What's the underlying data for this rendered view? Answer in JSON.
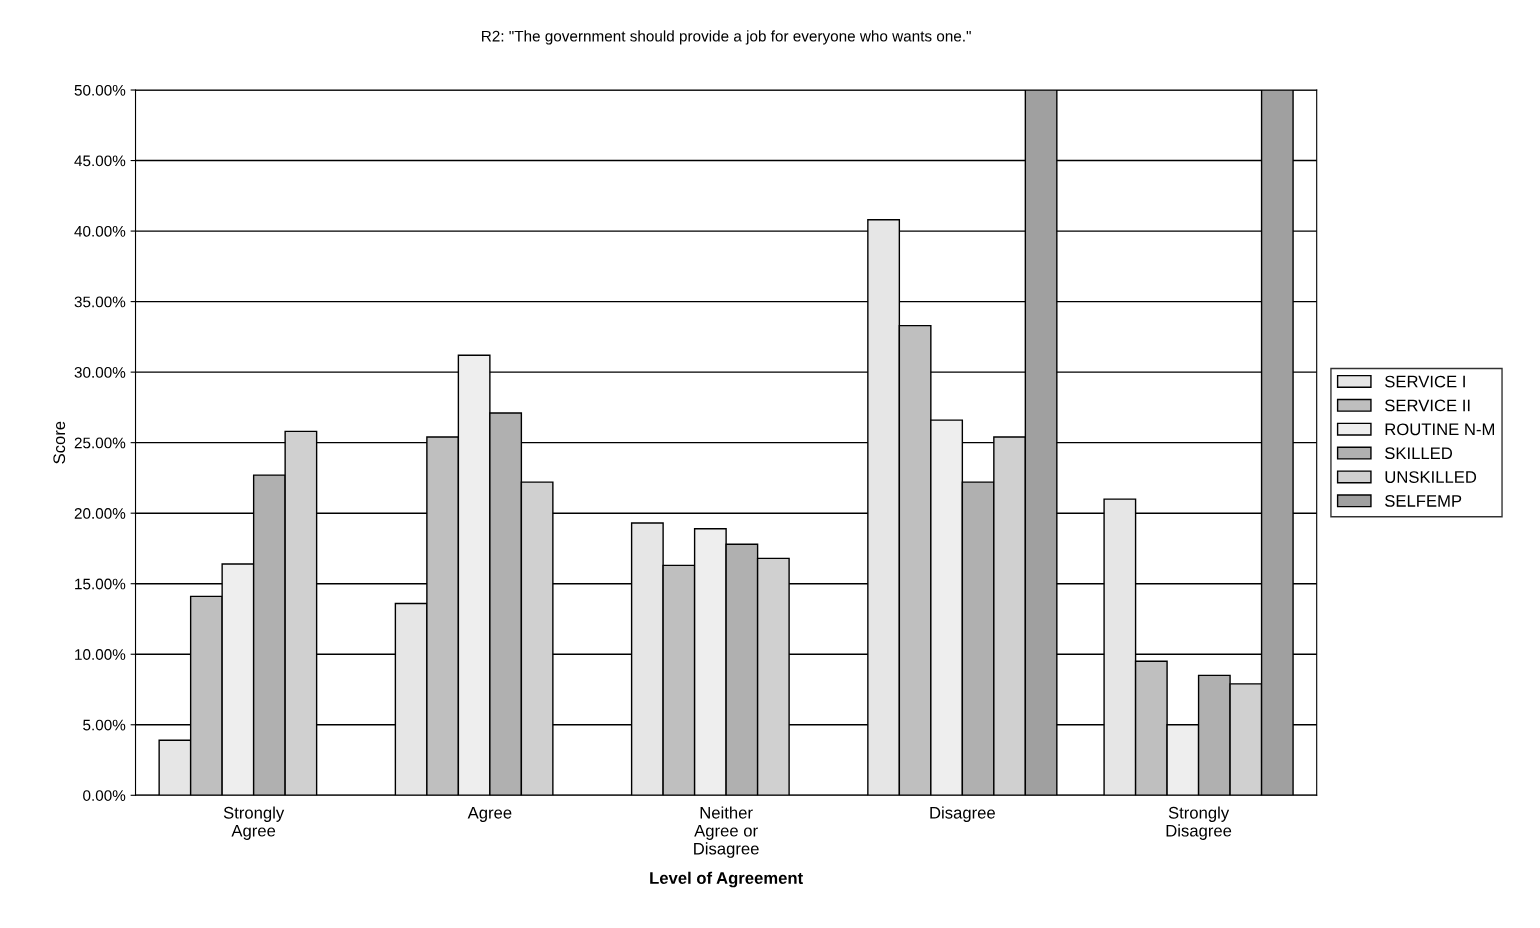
{
  "chart_data": {
    "type": "bar",
    "title": "R2: \"The government should provide a job for everyone who wants one.\"",
    "xlabel": "Level of Agreement",
    "ylabel": "Score",
    "categories": [
      "Strongly\nAgree",
      "Agree",
      "Neither\nAgree or\nDisagree",
      "Disagree",
      "Strongly\nDisagree"
    ],
    "series": [
      {
        "name": "SERVICE I",
        "color": "#e6e6e6",
        "values": [
          3.9,
          13.6,
          19.3,
          40.8,
          21.0
        ]
      },
      {
        "name": "SERVICE II",
        "color": "#bfbfbf",
        "values": [
          14.1,
          25.4,
          16.3,
          33.3,
          9.5
        ]
      },
      {
        "name": "ROUTINE N-M",
        "color": "#eeeeee",
        "values": [
          16.4,
          31.2,
          18.9,
          26.6,
          5.0
        ]
      },
      {
        "name": "SKILLED",
        "color": "#b0b0b0",
        "values": [
          22.7,
          27.1,
          17.8,
          22.2,
          8.5
        ]
      },
      {
        "name": "UNSKILLED",
        "color": "#d0d0d0",
        "values": [
          25.8,
          22.2,
          16.8,
          25.4,
          7.9
        ]
      },
      {
        "name": "SELFEMP",
        "color": "#a0a0a0",
        "values": [
          null,
          null,
          null,
          50,
          50
        ]
      }
    ],
    "ylim": [
      0,
      50
    ],
    "yticks": [
      {
        "value": 0,
        "label": "0.00%"
      },
      {
        "value": 5,
        "label": "5.00%"
      },
      {
        "value": 10,
        "label": "10.00%"
      },
      {
        "value": 15,
        "label": "15.00%"
      },
      {
        "value": 20,
        "label": "20.00%"
      },
      {
        "value": 25,
        "label": "25.00%"
      },
      {
        "value": 30,
        "label": "30.00%"
      },
      {
        "value": 35,
        "label": "35.00%"
      },
      {
        "value": 40,
        "label": "40.00%"
      },
      {
        "value": 45,
        "label": "45.00%"
      },
      {
        "value": 50,
        "label": "50.00%"
      }
    ],
    "grid": "y",
    "legend": "right"
  }
}
